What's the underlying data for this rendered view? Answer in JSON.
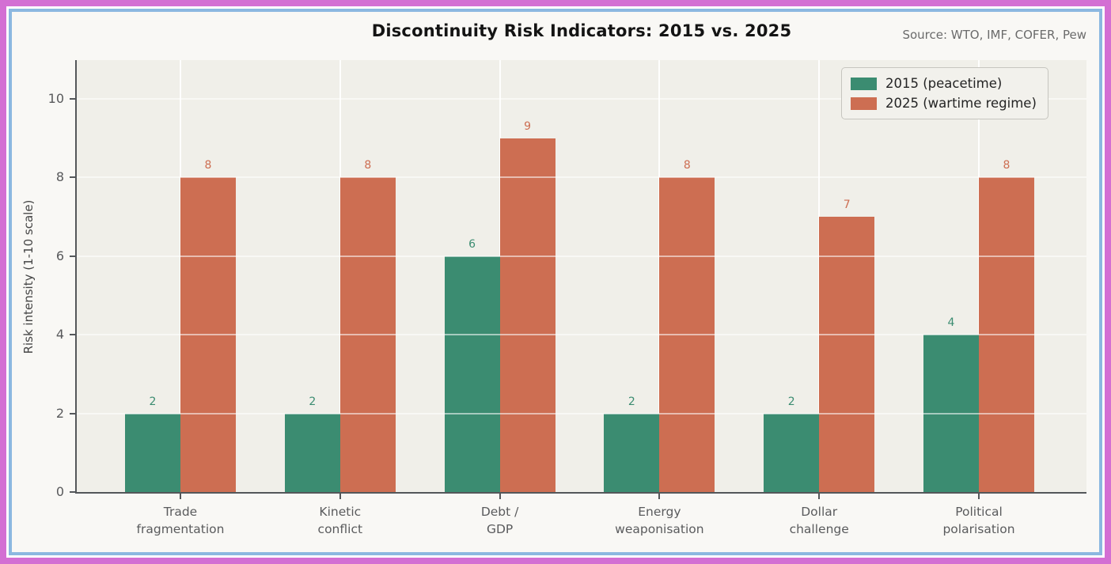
{
  "header": {
    "source": "Source: WTO, IMF, COFER, Pew"
  },
  "chart_data": {
    "type": "bar",
    "title": "Discontinuity Risk Indicators: 2015 vs. 2025",
    "ylabel": "Risk intensity (1-10 scale)",
    "xlabel": "",
    "categories": [
      "Trade fragmentation",
      "Kinetic conflict",
      "Debt / GDP",
      "Energy weaponisation",
      "Dollar challenge",
      "Political polarisation"
    ],
    "tick_lines": [
      [
        "Trade",
        "fragmentation"
      ],
      [
        "Kinetic",
        "conflict"
      ],
      [
        "Debt /",
        "GDP"
      ],
      [
        "Energy",
        "weaponisation"
      ],
      [
        "Dollar",
        "challenge"
      ],
      [
        "Political",
        "polarisation"
      ]
    ],
    "series": [
      {
        "name": "2015 (peacetime)",
        "color": "#3b8c71",
        "values": [
          2,
          2,
          6,
          2,
          2,
          4
        ]
      },
      {
        "name": "2025 (wartime regime)",
        "color": "#cd6e52",
        "values": [
          8,
          8,
          9,
          8,
          7,
          8
        ]
      }
    ],
    "yticks": [
      0,
      2,
      4,
      6,
      8,
      10
    ],
    "ylim": [
      0,
      11
    ],
    "grid": true,
    "legend_position": "upper right"
  },
  "colors": {
    "frame_outer": "#d36fd3",
    "frame_inner": "#8cb8e0",
    "figure_bg": "#f9f8f5",
    "axes_bg": "#f0efe9",
    "spine": "#54575a",
    "tick_text": "#58595b",
    "title_text": "#141414",
    "source_text": "#6b6b6b"
  }
}
